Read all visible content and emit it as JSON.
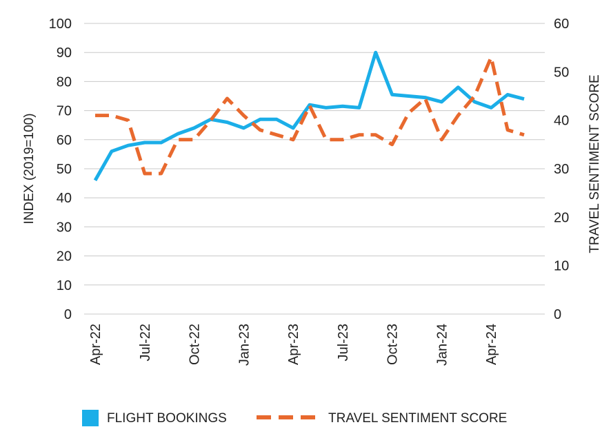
{
  "chart_data": {
    "type": "line",
    "y_axis_left": {
      "label": "INDEX (2019=100)",
      "range": [
        0,
        100
      ],
      "ticks": [
        "0",
        "10",
        "20",
        "30",
        "40",
        "50",
        "60",
        "70",
        "80",
        "90",
        "100"
      ]
    },
    "y_axis_right": {
      "label": "TRAVEL SENTIMENT SCORE",
      "range": [
        0,
        60
      ],
      "ticks": [
        "0",
        "10",
        "20",
        "30",
        "40",
        "50",
        "60"
      ]
    },
    "x_ticks": [
      "Apr-22",
      "Jul-22",
      "Oct-22",
      "Jan-23",
      "Apr-23",
      "Jul-23",
      "Oct-23",
      "Jan-24",
      "Apr-24"
    ],
    "x_tick_indices": [
      0,
      3,
      6,
      9,
      12,
      15,
      18,
      21,
      24
    ],
    "months": [
      "Apr-22",
      "May-22",
      "Jun-22",
      "Jul-22",
      "Aug-22",
      "Sep-22",
      "Oct-22",
      "Nov-22",
      "Dec-22",
      "Jan-23",
      "Feb-23",
      "Mar-23",
      "Apr-23",
      "May-23",
      "Jun-23",
      "Jul-23",
      "Aug-23",
      "Sep-23",
      "Oct-23",
      "Nov-23",
      "Dec-23",
      "Jan-24",
      "Feb-24",
      "Mar-24",
      "Apr-24",
      "May-24",
      "Jun-24"
    ],
    "grid": "horizontal",
    "legend_position": "bottom",
    "series": [
      {
        "name": "FLIGHT BOOKINGS",
        "axis": "left",
        "style": "solid",
        "color": "#1BAEE8",
        "values": [
          46,
          56,
          58,
          59,
          59,
          62,
          64,
          67,
          66,
          64,
          67,
          67,
          64,
          72,
          71,
          71.5,
          71,
          90,
          75.5,
          75,
          74.5,
          73,
          78,
          73,
          71,
          75.5,
          74
        ]
      },
      {
        "name": "TRAVEL SENTIMENT SCORE",
        "axis": "right",
        "style": "dashed",
        "color": "#E8692E",
        "values": [
          41,
          41,
          40,
          29,
          29,
          36,
          36,
          40,
          44.5,
          41,
          38,
          37,
          36,
          43,
          36,
          36,
          37,
          37,
          35,
          41.5,
          44.5,
          36,
          41,
          45,
          53,
          38,
          37
        ]
      }
    ]
  }
}
